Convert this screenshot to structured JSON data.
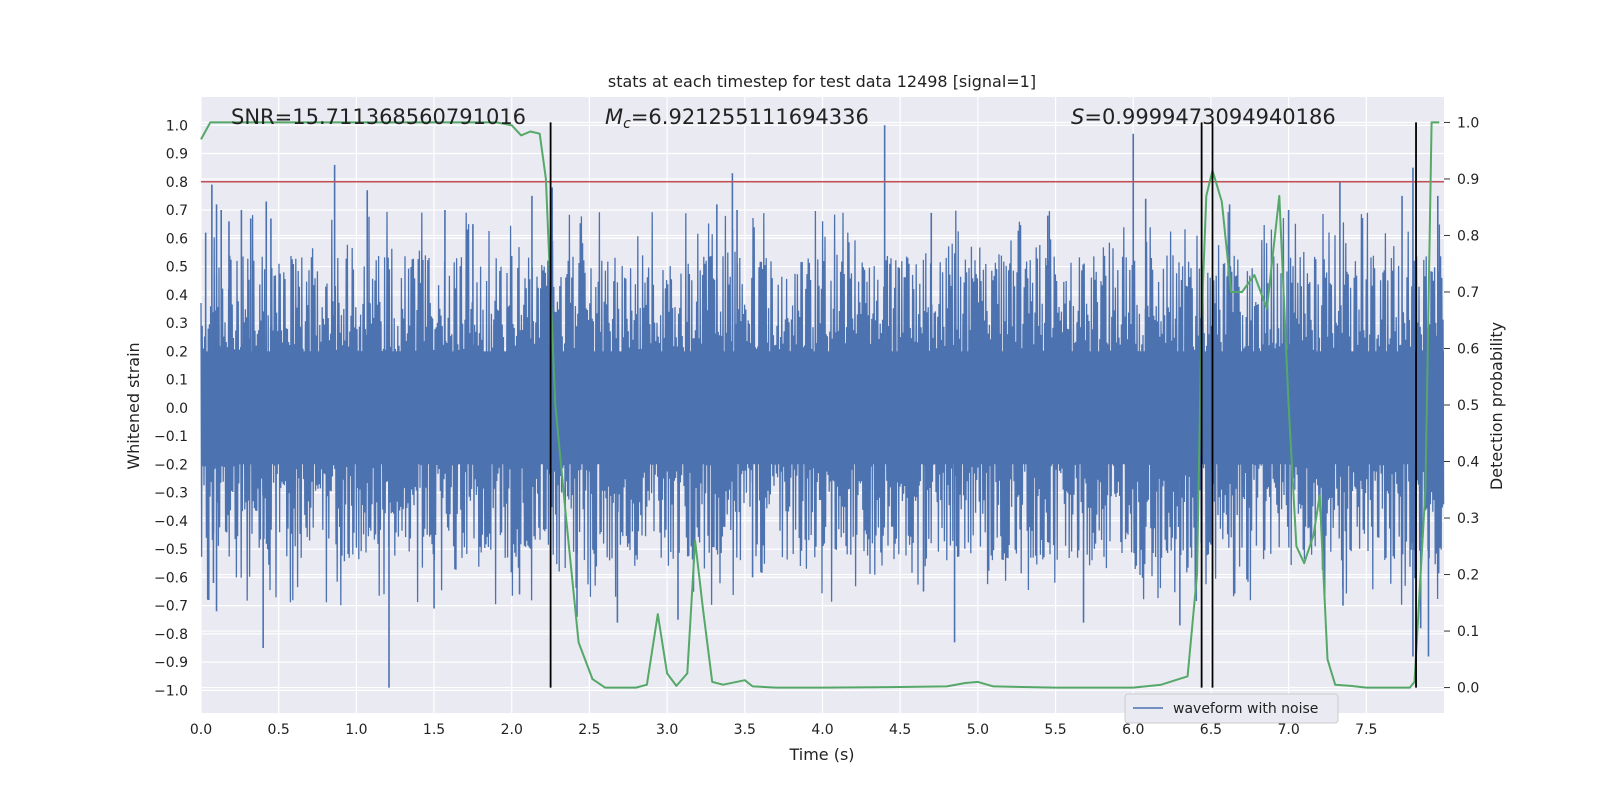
{
  "chart_data": {
    "type": "line",
    "title": "stats at each timestep for test data 12498 [signal=1]",
    "xlabel": "Time (s)",
    "ylabel_left": "Whitened strain",
    "ylabel_right": "Detection probability",
    "xlim": [
      0,
      8
    ],
    "ylim_left": [
      -1.08,
      1.1
    ],
    "ylim_right": [
      -0.045,
      1.045
    ],
    "x_ticks": [
      0,
      0.5,
      1,
      1.5,
      2,
      2.5,
      3,
      3.5,
      4,
      4.5,
      5,
      5.5,
      6,
      6.5,
      7,
      7.5
    ],
    "x_tick_labels": [
      "0.0",
      "0.5",
      "1.0",
      "1.5",
      "2.0",
      "2.5",
      "3.0",
      "3.5",
      "4.0",
      "4.5",
      "5.0",
      "5.5",
      "6.0",
      "6.5",
      "7.0",
      "7.5"
    ],
    "y_left_ticks": [
      1,
      0.9,
      0.8,
      0.7,
      0.6,
      0.5,
      0.4,
      0.3,
      0.2,
      0.1,
      0,
      -0.1,
      -0.2,
      -0.3,
      -0.4,
      -0.5,
      -0.6,
      -0.7,
      -0.8,
      -0.9,
      -1
    ],
    "y_left_tick_labels": [
      "1.0",
      "0.9",
      "0.8",
      "0.7",
      "0.6",
      "0.5",
      "0.4",
      "0.3",
      "0.2",
      "0.1",
      "0.0",
      "−0.1",
      "−0.2",
      "−0.3",
      "−0.4",
      "−0.5",
      "−0.6",
      "−0.7",
      "−0.8",
      "−0.9",
      "−1.0"
    ],
    "y_right_ticks": [
      1,
      0.9,
      0.8,
      0.7,
      0.6,
      0.5,
      0.4,
      0.3,
      0.2,
      0.1,
      0
    ],
    "y_right_tick_labels": [
      "1.0",
      "0.9",
      "0.8",
      "0.7",
      "0.6",
      "0.5",
      "0.4",
      "0.3",
      "0.2",
      "0.1",
      "0.0"
    ],
    "grid": true,
    "legend": {
      "placement": "lower-right",
      "entries": [
        "waveform with noise"
      ]
    },
    "annotations": [
      {
        "text": "SNR=15.711368560791016"
      },
      {
        "prefix": "M",
        "sub": "c",
        "text": "=6.921255111694336"
      },
      {
        "prefix": "S",
        "text": "=0.9999473094940186"
      }
    ],
    "threshold": {
      "y": 0.8,
      "color": "#c44e52"
    },
    "vertical_lines": [
      2.25,
      6.44,
      6.51,
      7.82
    ],
    "series": [
      {
        "name": "waveform with noise",
        "color": "#4c72b0",
        "envelope_typical": 0.42,
        "spikes": [
          {
            "x": 0.03,
            "y": 0.62
          },
          {
            "x": 0.07,
            "y": 0.79
          },
          {
            "x": 0.1,
            "y": 0.72
          },
          {
            "x": 0.13,
            "y": 0.7
          },
          {
            "x": 0.18,
            "y": 0.66
          },
          {
            "x": 0.26,
            "y": 0.7
          },
          {
            "x": 0.32,
            "y": 0.67
          },
          {
            "x": 0.42,
            "y": 0.73
          },
          {
            "x": 0.45,
            "y": 0.67
          },
          {
            "x": 0.86,
            "y": 0.86
          },
          {
            "x": 1.07,
            "y": 0.77
          },
          {
            "x": 1.57,
            "y": 0.7
          },
          {
            "x": 1.75,
            "y": 0.65
          },
          {
            "x": 2.13,
            "y": 0.75
          },
          {
            "x": 2.26,
            "y": 0.78
          },
          {
            "x": 3.32,
            "y": 0.72
          },
          {
            "x": 3.42,
            "y": 0.83
          },
          {
            "x": 3.45,
            "y": 0.7
          },
          {
            "x": 4.4,
            "y": 1.0
          },
          {
            "x": 4.7,
            "y": 0.69
          },
          {
            "x": 5.45,
            "y": 0.68
          },
          {
            "x": 6.0,
            "y": 0.97
          },
          {
            "x": 6.08,
            "y": 0.74
          },
          {
            "x": 6.62,
            "y": 0.72
          },
          {
            "x": 7.0,
            "y": 0.7
          },
          {
            "x": 7.33,
            "y": 0.8
          },
          {
            "x": 7.73,
            "y": 0.75
          },
          {
            "x": 7.8,
            "y": 0.85
          },
          {
            "x": 7.96,
            "y": 0.75
          },
          {
            "x": 0.05,
            "y": -0.68
          },
          {
            "x": 0.08,
            "y": -0.62
          },
          {
            "x": 0.1,
            "y": -0.72
          },
          {
            "x": 0.4,
            "y": -0.85
          },
          {
            "x": 1.21,
            "y": -0.99
          },
          {
            "x": 1.5,
            "y": -0.71
          },
          {
            "x": 2.05,
            "y": -0.66
          },
          {
            "x": 2.42,
            "y": -0.74
          },
          {
            "x": 2.68,
            "y": -0.76
          },
          {
            "x": 3.07,
            "y": -0.75
          },
          {
            "x": 3.55,
            "y": -0.6
          },
          {
            "x": 4.65,
            "y": -0.65
          },
          {
            "x": 4.85,
            "y": -0.83
          },
          {
            "x": 5.68,
            "y": -0.76
          },
          {
            "x": 6.3,
            "y": -0.77
          },
          {
            "x": 7.35,
            "y": -0.7
          },
          {
            "x": 7.8,
            "y": -0.88
          },
          {
            "x": 7.9,
            "y": -0.88
          },
          {
            "x": 7.85,
            "y": -0.78
          }
        ]
      },
      {
        "name": "Detection probability",
        "axis": "right",
        "color": "#55a868",
        "x": [
          0,
          0.06,
          0.2,
          1.0,
          1.9,
          2.0,
          2.06,
          2.12,
          2.18,
          2.22,
          2.28,
          2.35,
          2.43,
          2.52,
          2.6,
          2.8,
          2.87,
          2.94,
          3.0,
          3.06,
          3.13,
          3.18,
          3.23,
          3.29,
          3.36,
          3.5,
          3.55,
          3.7,
          4.0,
          4.5,
          4.8,
          4.92,
          5.0,
          5.1,
          5.5,
          6.0,
          6.18,
          6.35,
          6.41,
          6.44,
          6.47,
          6.51,
          6.57,
          6.63,
          6.7,
          6.78,
          6.86,
          6.94,
          7.0,
          7.05,
          7.1,
          7.16,
          7.2,
          7.25,
          7.3,
          7.4,
          7.5,
          7.78,
          7.81,
          7.88,
          7.92,
          7.97
        ],
        "y": [
          0.97,
          1.0,
          1.0,
          1.0,
          1.0,
          0.995,
          0.977,
          0.984,
          0.98,
          0.9,
          0.5,
          0.3,
          0.08,
          0.015,
          0.0,
          0.0,
          0.005,
          0.13,
          0.025,
          0.003,
          0.025,
          0.26,
          0.14,
          0.01,
          0.005,
          0.013,
          0.002,
          0.0,
          0.0,
          0.001,
          0.002,
          0.008,
          0.01,
          0.002,
          0.0,
          0.0,
          0.005,
          0.02,
          0.2,
          0.65,
          0.87,
          0.915,
          0.86,
          0.7,
          0.7,
          0.73,
          0.67,
          0.87,
          0.5,
          0.25,
          0.22,
          0.27,
          0.34,
          0.05,
          0.005,
          0.003,
          0.0,
          0.0,
          0.01,
          0.35,
          1.0,
          1.0
        ]
      }
    ]
  }
}
